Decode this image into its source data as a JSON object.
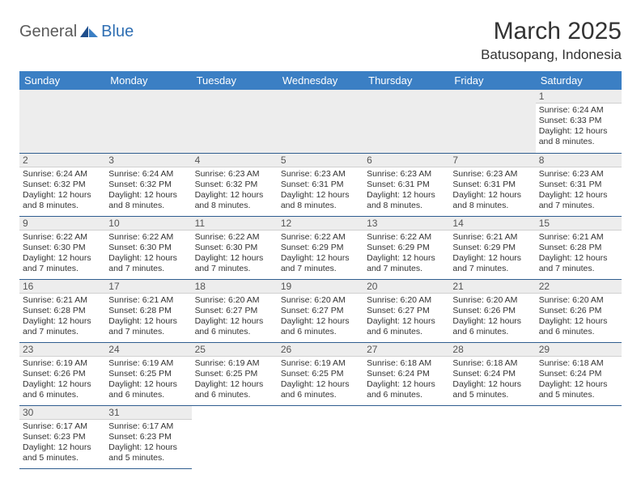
{
  "header": {
    "logo_part1": "General",
    "logo_part2": "Blue",
    "month_title": "March 2025",
    "location": "Batusopang, Indonesia"
  },
  "colors": {
    "header_bg": "#3b7fc4",
    "header_text": "#ffffff",
    "row_divider": "#2f5d8f",
    "daynum_bg": "#ededed",
    "logo_gray": "#5a5a5a",
    "logo_blue": "#2f6fb3"
  },
  "weekdays": [
    "Sunday",
    "Monday",
    "Tuesday",
    "Wednesday",
    "Thursday",
    "Friday",
    "Saturday"
  ],
  "weeks": [
    [
      null,
      null,
      null,
      null,
      null,
      null,
      {
        "n": "1",
        "sr": "6:24 AM",
        "ss": "6:33 PM",
        "dl": "12 hours and 8 minutes."
      }
    ],
    [
      {
        "n": "2",
        "sr": "6:24 AM",
        "ss": "6:32 PM",
        "dl": "12 hours and 8 minutes."
      },
      {
        "n": "3",
        "sr": "6:24 AM",
        "ss": "6:32 PM",
        "dl": "12 hours and 8 minutes."
      },
      {
        "n": "4",
        "sr": "6:23 AM",
        "ss": "6:32 PM",
        "dl": "12 hours and 8 minutes."
      },
      {
        "n": "5",
        "sr": "6:23 AM",
        "ss": "6:31 PM",
        "dl": "12 hours and 8 minutes."
      },
      {
        "n": "6",
        "sr": "6:23 AM",
        "ss": "6:31 PM",
        "dl": "12 hours and 8 minutes."
      },
      {
        "n": "7",
        "sr": "6:23 AM",
        "ss": "6:31 PM",
        "dl": "12 hours and 8 minutes."
      },
      {
        "n": "8",
        "sr": "6:23 AM",
        "ss": "6:31 PM",
        "dl": "12 hours and 7 minutes."
      }
    ],
    [
      {
        "n": "9",
        "sr": "6:22 AM",
        "ss": "6:30 PM",
        "dl": "12 hours and 7 minutes."
      },
      {
        "n": "10",
        "sr": "6:22 AM",
        "ss": "6:30 PM",
        "dl": "12 hours and 7 minutes."
      },
      {
        "n": "11",
        "sr": "6:22 AM",
        "ss": "6:30 PM",
        "dl": "12 hours and 7 minutes."
      },
      {
        "n": "12",
        "sr": "6:22 AM",
        "ss": "6:29 PM",
        "dl": "12 hours and 7 minutes."
      },
      {
        "n": "13",
        "sr": "6:22 AM",
        "ss": "6:29 PM",
        "dl": "12 hours and 7 minutes."
      },
      {
        "n": "14",
        "sr": "6:21 AM",
        "ss": "6:29 PM",
        "dl": "12 hours and 7 minutes."
      },
      {
        "n": "15",
        "sr": "6:21 AM",
        "ss": "6:28 PM",
        "dl": "12 hours and 7 minutes."
      }
    ],
    [
      {
        "n": "16",
        "sr": "6:21 AM",
        "ss": "6:28 PM",
        "dl": "12 hours and 7 minutes."
      },
      {
        "n": "17",
        "sr": "6:21 AM",
        "ss": "6:28 PM",
        "dl": "12 hours and 7 minutes."
      },
      {
        "n": "18",
        "sr": "6:20 AM",
        "ss": "6:27 PM",
        "dl": "12 hours and 6 minutes."
      },
      {
        "n": "19",
        "sr": "6:20 AM",
        "ss": "6:27 PM",
        "dl": "12 hours and 6 minutes."
      },
      {
        "n": "20",
        "sr": "6:20 AM",
        "ss": "6:27 PM",
        "dl": "12 hours and 6 minutes."
      },
      {
        "n": "21",
        "sr": "6:20 AM",
        "ss": "6:26 PM",
        "dl": "12 hours and 6 minutes."
      },
      {
        "n": "22",
        "sr": "6:20 AM",
        "ss": "6:26 PM",
        "dl": "12 hours and 6 minutes."
      }
    ],
    [
      {
        "n": "23",
        "sr": "6:19 AM",
        "ss": "6:26 PM",
        "dl": "12 hours and 6 minutes."
      },
      {
        "n": "24",
        "sr": "6:19 AM",
        "ss": "6:25 PM",
        "dl": "12 hours and 6 minutes."
      },
      {
        "n": "25",
        "sr": "6:19 AM",
        "ss": "6:25 PM",
        "dl": "12 hours and 6 minutes."
      },
      {
        "n": "26",
        "sr": "6:19 AM",
        "ss": "6:25 PM",
        "dl": "12 hours and 6 minutes."
      },
      {
        "n": "27",
        "sr": "6:18 AM",
        "ss": "6:24 PM",
        "dl": "12 hours and 6 minutes."
      },
      {
        "n": "28",
        "sr": "6:18 AM",
        "ss": "6:24 PM",
        "dl": "12 hours and 5 minutes."
      },
      {
        "n": "29",
        "sr": "6:18 AM",
        "ss": "6:24 PM",
        "dl": "12 hours and 5 minutes."
      }
    ],
    [
      {
        "n": "30",
        "sr": "6:17 AM",
        "ss": "6:23 PM",
        "dl": "12 hours and 5 minutes."
      },
      {
        "n": "31",
        "sr": "6:17 AM",
        "ss": "6:23 PM",
        "dl": "12 hours and 5 minutes."
      },
      null,
      null,
      null,
      null,
      null
    ]
  ],
  "labels": {
    "sunrise": "Sunrise:",
    "sunset": "Sunset:",
    "daylight": "Daylight:"
  }
}
